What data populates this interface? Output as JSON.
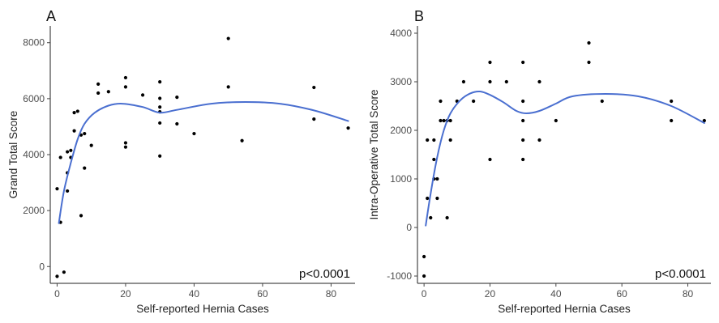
{
  "chart_data": [
    {
      "type": "scatter",
      "panel": "A",
      "title": "",
      "xlabel": "Self-reported Hernia Cases",
      "ylabel": "Grand Total Score",
      "annotation": "p<0.0001",
      "xlim": [
        -2,
        87
      ],
      "ylim": [
        -600,
        8600
      ],
      "xticks": [
        0,
        20,
        40,
        60,
        80
      ],
      "yticks": [
        0,
        2000,
        4000,
        6000,
        8000
      ],
      "grid": false,
      "smooth_color": "#4a6fd0",
      "points": [
        {
          "x": 0,
          "y": -350
        },
        {
          "x": 0,
          "y": 2780
        },
        {
          "x": 1,
          "y": 1580
        },
        {
          "x": 1,
          "y": 3900
        },
        {
          "x": 2,
          "y": -200
        },
        {
          "x": 3,
          "y": 2700
        },
        {
          "x": 3,
          "y": 3350
        },
        {
          "x": 3,
          "y": 4100
        },
        {
          "x": 4,
          "y": 3900
        },
        {
          "x": 4,
          "y": 4150
        },
        {
          "x": 5,
          "y": 4850
        },
        {
          "x": 5,
          "y": 5500
        },
        {
          "x": 6,
          "y": 5550
        },
        {
          "x": 7,
          "y": 1820
        },
        {
          "x": 7,
          "y": 4700
        },
        {
          "x": 8,
          "y": 3520
        },
        {
          "x": 8,
          "y": 4750
        },
        {
          "x": 10,
          "y": 4330
        },
        {
          "x": 12,
          "y": 6200
        },
        {
          "x": 12,
          "y": 6520
        },
        {
          "x": 15,
          "y": 6250
        },
        {
          "x": 20,
          "y": 6750
        },
        {
          "x": 20,
          "y": 6420
        },
        {
          "x": 20,
          "y": 4420
        },
        {
          "x": 20,
          "y": 4270
        },
        {
          "x": 25,
          "y": 6130
        },
        {
          "x": 30,
          "y": 6600
        },
        {
          "x": 30,
          "y": 6010
        },
        {
          "x": 30,
          "y": 5700
        },
        {
          "x": 30,
          "y": 5530
        },
        {
          "x": 30,
          "y": 5130
        },
        {
          "x": 30,
          "y": 3950
        },
        {
          "x": 35,
          "y": 6050
        },
        {
          "x": 35,
          "y": 5100
        },
        {
          "x": 40,
          "y": 4750
        },
        {
          "x": 50,
          "y": 8150
        },
        {
          "x": 50,
          "y": 6420
        },
        {
          "x": 54,
          "y": 4500
        },
        {
          "x": 75,
          "y": 6400
        },
        {
          "x": 75,
          "y": 5270
        },
        {
          "x": 85,
          "y": 4950
        }
      ],
      "smooth": [
        {
          "x": 0.5,
          "y": 1550
        },
        {
          "x": 2,
          "y": 2700
        },
        {
          "x": 4,
          "y": 3700
        },
        {
          "x": 6,
          "y": 4550
        },
        {
          "x": 8,
          "y": 5100
        },
        {
          "x": 11,
          "y": 5500
        },
        {
          "x": 15,
          "y": 5750
        },
        {
          "x": 19,
          "y": 5820
        },
        {
          "x": 25,
          "y": 5700
        },
        {
          "x": 30,
          "y": 5500
        },
        {
          "x": 35,
          "y": 5600
        },
        {
          "x": 45,
          "y": 5820
        },
        {
          "x": 55,
          "y": 5880
        },
        {
          "x": 65,
          "y": 5820
        },
        {
          "x": 75,
          "y": 5580
        },
        {
          "x": 85,
          "y": 5200
        }
      ]
    },
    {
      "type": "scatter",
      "panel": "B",
      "title": "",
      "xlabel": "Self-reported Hernia Cases",
      "ylabel": "Intra-Operative Total Score",
      "annotation": "p<0.0001",
      "xlim": [
        -2,
        87
      ],
      "ylim": [
        -1150,
        4150
      ],
      "xticks": [
        0,
        20,
        40,
        60,
        80
      ],
      "yticks": [
        -1000,
        0,
        1000,
        2000,
        3000,
        4000
      ],
      "grid": false,
      "smooth_color": "#4a6fd0",
      "points": [
        {
          "x": 0,
          "y": -1000
        },
        {
          "x": 0,
          "y": -600
        },
        {
          "x": 1,
          "y": 600
        },
        {
          "x": 1,
          "y": 1800
        },
        {
          "x": 2,
          "y": 200
        },
        {
          "x": 3,
          "y": 1400
        },
        {
          "x": 3,
          "y": 1800
        },
        {
          "x": 3,
          "y": 1000
        },
        {
          "x": 4,
          "y": 600
        },
        {
          "x": 4,
          "y": 1000
        },
        {
          "x": 5,
          "y": 2200
        },
        {
          "x": 5,
          "y": 2600
        },
        {
          "x": 6,
          "y": 2200
        },
        {
          "x": 7,
          "y": 2200
        },
        {
          "x": 7,
          "y": 200
        },
        {
          "x": 8,
          "y": 1800
        },
        {
          "x": 8,
          "y": 2200
        },
        {
          "x": 10,
          "y": 2600
        },
        {
          "x": 12,
          "y": 3000
        },
        {
          "x": 15,
          "y": 2600
        },
        {
          "x": 20,
          "y": 3400
        },
        {
          "x": 20,
          "y": 3000
        },
        {
          "x": 20,
          "y": 1400
        },
        {
          "x": 25,
          "y": 3000
        },
        {
          "x": 30,
          "y": 3400
        },
        {
          "x": 30,
          "y": 2600
        },
        {
          "x": 30,
          "y": 2200
        },
        {
          "x": 30,
          "y": 1800
        },
        {
          "x": 30,
          "y": 1400
        },
        {
          "x": 35,
          "y": 3000
        },
        {
          "x": 35,
          "y": 1800
        },
        {
          "x": 40,
          "y": 2200
        },
        {
          "x": 50,
          "y": 3800
        },
        {
          "x": 50,
          "y": 3400
        },
        {
          "x": 54,
          "y": 2600
        },
        {
          "x": 75,
          "y": 2600
        },
        {
          "x": 75,
          "y": 2200
        },
        {
          "x": 85,
          "y": 2200
        }
      ],
      "smooth": [
        {
          "x": 0.5,
          "y": 40
        },
        {
          "x": 2,
          "y": 700
        },
        {
          "x": 4,
          "y": 1450
        },
        {
          "x": 6,
          "y": 2000
        },
        {
          "x": 8,
          "y": 2350
        },
        {
          "x": 11,
          "y": 2620
        },
        {
          "x": 14,
          "y": 2760
        },
        {
          "x": 17,
          "y": 2800
        },
        {
          "x": 20,
          "y": 2730
        },
        {
          "x": 24,
          "y": 2580
        },
        {
          "x": 28,
          "y": 2400
        },
        {
          "x": 31,
          "y": 2350
        },
        {
          "x": 35,
          "y": 2400
        },
        {
          "x": 40,
          "y": 2550
        },
        {
          "x": 45,
          "y": 2700
        },
        {
          "x": 55,
          "y": 2750
        },
        {
          "x": 65,
          "y": 2700
        },
        {
          "x": 75,
          "y": 2500
        },
        {
          "x": 85,
          "y": 2150
        }
      ]
    }
  ]
}
